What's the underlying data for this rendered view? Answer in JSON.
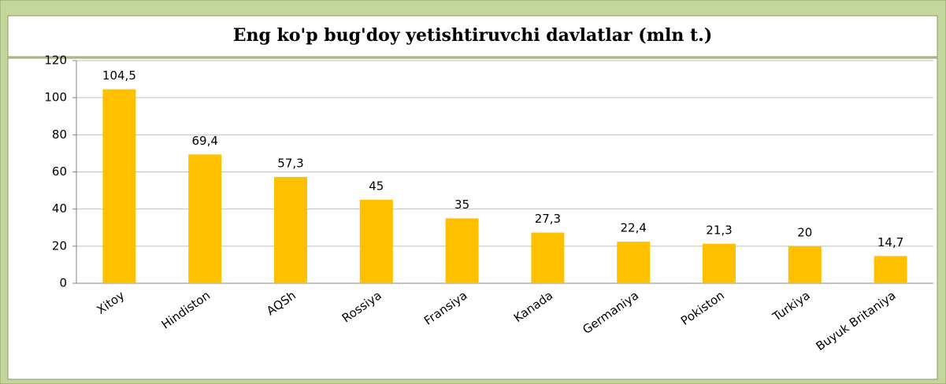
{
  "chart_data": {
    "type": "bar",
    "title": "Eng ko'p bug'doy yetishtiruvchi davlatlar (mln t.)",
    "categories": [
      "Xitoy",
      "Hindiston",
      "AQSh",
      "Rossiya",
      "Fransiya",
      "Kanada",
      "Germaniya",
      "Pokiston",
      "Turkiya",
      "Buyuk Britaniya"
    ],
    "values": [
      104.5,
      69.4,
      57.3,
      45,
      35,
      27.3,
      22.4,
      21.3,
      20,
      14.7
    ],
    "value_labels": [
      "104,5",
      "69,4",
      "57,3",
      "45",
      "35",
      "27,3",
      "22,4",
      "21,3",
      "20",
      "14,7"
    ],
    "color": "#ffc000",
    "ylim": [
      0,
      120
    ],
    "yticks": [
      0,
      20,
      40,
      60,
      80,
      100,
      120
    ],
    "grid": true
  }
}
